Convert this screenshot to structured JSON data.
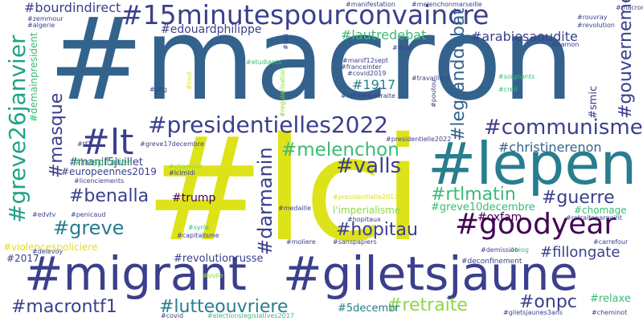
{
  "colors": {
    "background": "#ffffff",
    "dark_purple": "#440154",
    "indigo": "#3b3f8c",
    "blue": "#33638d",
    "teal": "#287d8e",
    "green_teal": "#20a386",
    "green": "#3bbb75",
    "lime": "#8fd744",
    "yellow": "#dde318"
  },
  "words": {
    "macron": "#macron",
    "lci": "#lci",
    "lepen": "#lepen",
    "migrant": "#migrant",
    "giletsjaune": "#giletsjaune",
    "quinze_minutes": "#15minutespourconvaincre",
    "presidentielles2022": "#presidentielles2022",
    "greve26janvier": "#greve26janvier",
    "goodyear": "#goodyear",
    "lt": "#lt",
    "communisme": "#communisme",
    "melenchon": "#melenchon",
    "valls": "#valls",
    "masque": "#masque",
    "darmanin": "#darmanin",
    "legranddebat": "#legranddebat",
    "gouvernement": "#gouvernement",
    "greve": "#greve",
    "benalla": "#benalla",
    "rtlmatin": "#rtlmatin",
    "guerre": "#guerre",
    "hopitau": "#hopitau",
    "onpc": "#onpc",
    "retraite": "#retraite",
    "lutteouvriere": "#lutteouvriere",
    "macrontf1": "#macrontf1",
    "fillongate": "#fillongate",
    "christinerenon": "#christinerenon",
    "bourdindirect": "#bourdindirect",
    "edouardphilippe": "#edouardphilippe",
    "lautredebat": "#lautredebat",
    "arabiesaoudite": "#arabiesaoudite",
    "n1917": "#1917",
    "demainpresident": "#demainpresident",
    "manif5juillet": "#manif5juillet",
    "hospitalier": "#hospitalier",
    "europeennes2019": "#europeennes2019",
    "trump": "#trump",
    "oxfam": "#oxfam",
    "greve10decembre": "#greve10decembre",
    "limperialisme": "l'imperialisme",
    "chomage": "#chomage",
    "revolutionrusse": "#revolutionrusse",
    "n2017": "#2017",
    "violencespoliciere": "#violencespoliciere",
    "n5decembr": "#5decembr",
    "relaxe": "#relaxe",
    "smic": "#smic",
    "zemmour": "#zemmour",
    "algerie": "#algerie",
    "manifestation": "#manifestation",
    "melenchonmarseille": "#melenchonmarseille",
    "rouvray": "#rouvray",
    "revolution": "#revolution",
    "macron_small": "#macron",
    "manif12sept": "#manif12sept",
    "franceinter": "#franceinter",
    "covid2019": "#covid2019",
    "travailleur": "#travailleur",
    "reformeretraite": "#reformeretraite",
    "soignants": "#soignants",
    "creil": "#creil",
    "etudiants": "#etudiants",
    "pdg": "#pdg",
    "tf1": "#tf1",
    "greve17decembre": "#greve17decembre",
    "presidentielle2022": "#presidentielle2022",
    "champol": "#champol",
    "lcimidi": "#lcimidi",
    "licenciements": "#licenciements",
    "presidentielle2017": "#presidentielle2017",
    "hopitaux": "#hopitaux",
    "penicaud": "#penicaud",
    "edvtv": "#edvtv",
    "syrie": "#syrie",
    "capitalisme": "#capitalisme",
    "medaille": "#medaille",
    "retraiteparpoint": "#retraiteparpoint",
    "carrefour": "#carrefour",
    "delevoy": "#delevoy",
    "moliere": "#moliere",
    "sanspapiers": "#sanspapiers",
    "demission": "#demission",
    "blog": "#blog",
    "deconfinement": "#deconfinement",
    "voile": "#voile",
    "covid": "#covid",
    "electionslegislatives2017": "#electionslegislatives2017",
    "giletsjaunes3ans": "#giletsjaunes3ans",
    "cheminot": "#cheminot",
    "poutou": "#poutou",
    "tati": "#tati",
    "bour": "#bour",
    "regularisation": "#regularisation",
    "tout": "#tout",
    "namon": "#namon"
  }
}
